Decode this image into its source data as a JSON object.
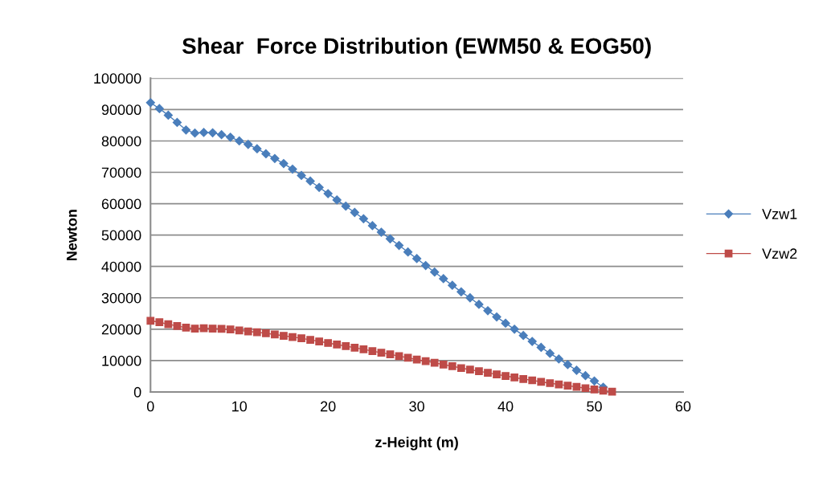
{
  "chart_data": {
    "type": "line",
    "title": "Shear  Force Distribution (EWM50 & EOG50)",
    "xlabel": "z-Height (m)",
    "ylabel": "Newton",
    "xlim": [
      0,
      60
    ],
    "xticks": [
      0,
      10,
      20,
      30,
      40,
      50,
      60
    ],
    "ylim": [
      0,
      100000
    ],
    "yticks": [
      0,
      10000,
      20000,
      30000,
      40000,
      50000,
      60000,
      70000,
      80000,
      90000,
      100000
    ],
    "grid": "y",
    "legend": "right",
    "series": [
      {
        "name": "Vzw1",
        "color": "#4a7ebb",
        "marker": "diamond",
        "x": [
          0,
          1,
          2,
          3,
          4,
          5,
          6,
          7,
          8,
          9,
          10,
          11,
          12,
          13,
          14,
          15,
          16,
          17,
          18,
          19,
          20,
          21,
          22,
          23,
          24,
          25,
          26,
          27,
          28,
          29,
          30,
          31,
          32,
          33,
          34,
          35,
          36,
          37,
          38,
          39,
          40,
          41,
          42,
          43,
          44,
          45,
          46,
          47,
          48,
          49,
          50,
          51
        ],
        "values": [
          92200,
          90300,
          88200,
          85900,
          83500,
          82500,
          82700,
          82600,
          82000,
          81200,
          80000,
          78900,
          77500,
          75900,
          74400,
          72800,
          71000,
          69000,
          67200,
          65200,
          63200,
          61200,
          59200,
          57200,
          55200,
          53000,
          50900,
          48800,
          46700,
          44600,
          42500,
          40300,
          38200,
          36100,
          34000,
          31900,
          30000,
          27900,
          25900,
          23900,
          21900,
          20000,
          18000,
          16100,
          14200,
          12300,
          10500,
          8700,
          6900,
          5200,
          3500,
          1500
        ]
      },
      {
        "name": "Vzw2",
        "color": "#be4b48",
        "marker": "square",
        "x": [
          0,
          1,
          2,
          3,
          4,
          5,
          6,
          7,
          8,
          9,
          10,
          11,
          12,
          13,
          14,
          15,
          16,
          17,
          18,
          19,
          20,
          21,
          22,
          23,
          24,
          25,
          26,
          27,
          28,
          29,
          30,
          31,
          32,
          33,
          34,
          35,
          36,
          37,
          38,
          39,
          40,
          41,
          42,
          43,
          44,
          45,
          46,
          47,
          48,
          49,
          50,
          51,
          52
        ],
        "values": [
          22700,
          22200,
          21600,
          21000,
          20500,
          20200,
          20300,
          20200,
          20100,
          19900,
          19600,
          19300,
          19000,
          18700,
          18300,
          17900,
          17500,
          17100,
          16600,
          16100,
          15600,
          15100,
          14600,
          14100,
          13600,
          13000,
          12500,
          12000,
          11400,
          10900,
          10300,
          9800,
          9300,
          8700,
          8200,
          7600,
          7100,
          6600,
          6100,
          5600,
          5100,
          4600,
          4100,
          3700,
          3200,
          2800,
          2400,
          2000,
          1600,
          1200,
          800,
          400,
          100
        ]
      }
    ]
  }
}
